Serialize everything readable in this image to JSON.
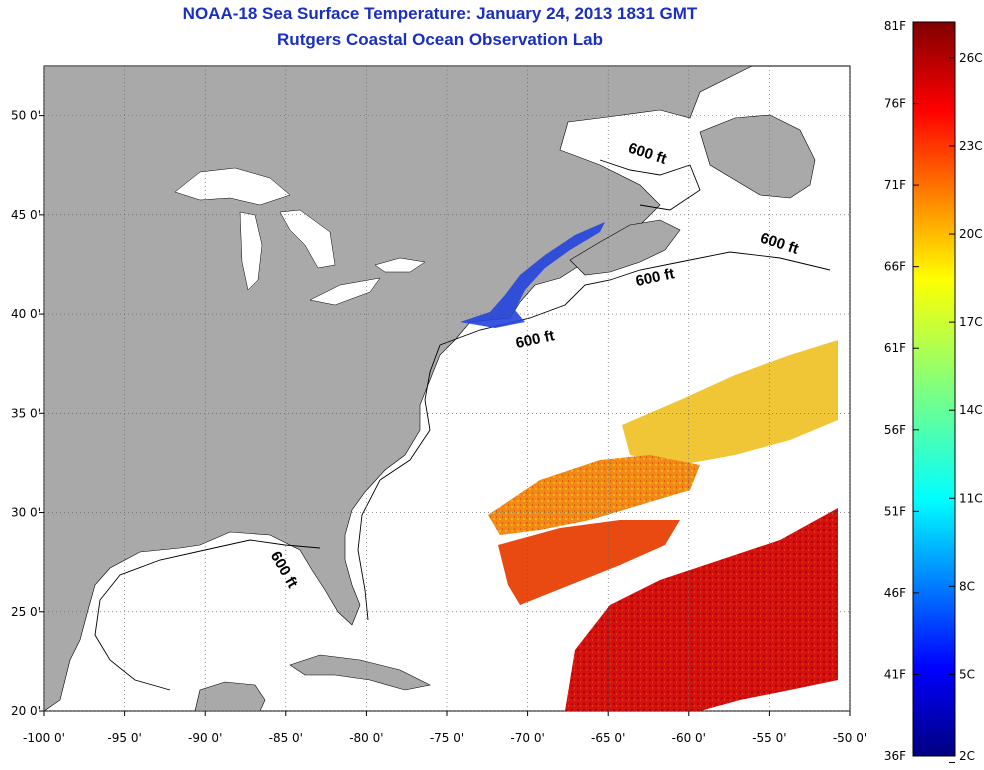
{
  "title": "NOAA-18 Sea Surface Temperature:  January 24, 2013 1831 GMT",
  "subtitle": "Rutgers Coastal Ocean Observation Lab",
  "map": {
    "lon_range": [
      -100,
      -50
    ],
    "lat_range": [
      20,
      52.5
    ],
    "lon_ticks": [
      "-100 0'",
      "-95 0'",
      "-90 0'",
      "-85 0'",
      "-80 0'",
      "-75 0'",
      "-70 0'",
      "-65 0'",
      "-60 0'",
      "-55 0'",
      "-50 0'"
    ],
    "lat_ticks": [
      "20 0'",
      "25 0'",
      "30 0'",
      "35 0'",
      "40 0'",
      "45 0'",
      "50 0'"
    ],
    "land_color": "#a9a9a9",
    "ocean_color": "#ffffff",
    "contour_labels": [
      "600 ft",
      "600 ft",
      "600 ft",
      "600 ft",
      "600 ft"
    ]
  },
  "colorbar": {
    "fahrenheit_labels": [
      "81F",
      "76F",
      "71F",
      "66F",
      "61F",
      "56F",
      "51F",
      "46F",
      "41F",
      "36F"
    ],
    "celsius_labels": [
      "26C",
      "23C",
      "20C",
      "17C",
      "14C",
      "11C",
      "8C",
      "5C",
      "2C"
    ],
    "colormap": "jet",
    "range_f": [
      36,
      81
    ]
  }
}
